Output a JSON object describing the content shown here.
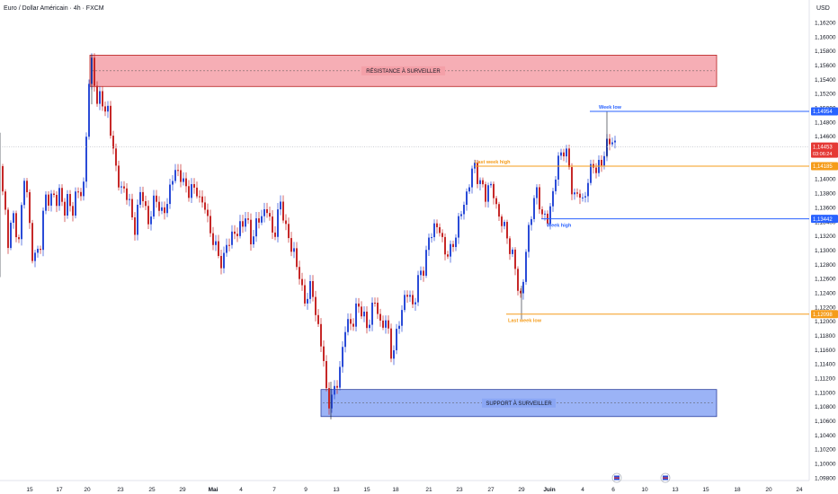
{
  "header": {
    "title": "Euro / Dollar Américain · 4h · FXCM",
    "currency": "USD"
  },
  "chart_data": {
    "type": "candlestick",
    "y_range": [
      1.098,
      1.164
    ],
    "y_ticks": [
      "1,16200",
      "1,16000",
      "1,15800",
      "1,15600",
      "1,15400",
      "1,15200",
      "1,15000",
      "1,14800",
      "1,14600",
      "1,14400",
      "1,14200",
      "1,14000",
      "1,13800",
      "1,13600",
      "1,13400",
      "1,13200",
      "1,13000",
      "1,12800",
      "1,12600",
      "1,12400",
      "1,12200",
      "1,12000",
      "1,11800",
      "1,11600",
      "1,11400",
      "1,11200",
      "1,11000",
      "1,10800",
      "1,10600",
      "1,10400",
      "1,10200",
      "1,10000",
      "1,09800"
    ],
    "y_tick_values": [
      1.162,
      1.16,
      1.158,
      1.156,
      1.154,
      1.152,
      1.15,
      1.148,
      1.146,
      1.144,
      1.142,
      1.14,
      1.138,
      1.136,
      1.134,
      1.132,
      1.13,
      1.128,
      1.126,
      1.124,
      1.122,
      1.12,
      1.118,
      1.116,
      1.114,
      1.112,
      1.11,
      1.108,
      1.106,
      1.104,
      1.102,
      1.1,
      1.098
    ],
    "x_ticks": [
      {
        "label": "15",
        "bold": false
      },
      {
        "label": "17",
        "bold": false
      },
      {
        "label": "20",
        "bold": false
      },
      {
        "label": "23",
        "bold": false
      },
      {
        "label": "25",
        "bold": false
      },
      {
        "label": "29",
        "bold": false
      },
      {
        "label": "Mai",
        "bold": true
      },
      {
        "label": "4",
        "bold": false
      },
      {
        "label": "7",
        "bold": false
      },
      {
        "label": "9",
        "bold": false
      },
      {
        "label": "13",
        "bold": false
      },
      {
        "label": "15",
        "bold": false
      },
      {
        "label": "18",
        "bold": false
      },
      {
        "label": "21",
        "bold": false
      },
      {
        "label": "23",
        "bold": false
      },
      {
        "label": "27",
        "bold": false
      },
      {
        "label": "29",
        "bold": false
      },
      {
        "label": "Juin",
        "bold": true
      },
      {
        "label": "4",
        "bold": false
      },
      {
        "label": "6",
        "bold": false
      },
      {
        "label": "10",
        "bold": false
      },
      {
        "label": "13",
        "bold": false
      },
      {
        "label": "15",
        "bold": false
      },
      {
        "label": "18",
        "bold": false
      },
      {
        "label": "20",
        "bold": false
      },
      {
        "label": "24",
        "bold": false
      }
    ],
    "zones": [
      {
        "label": "RÉSISTANCE À SURVEILLER",
        "top": 1.1574,
        "bottom": 1.153,
        "fill": "#f4a0a8",
        "stroke": "#b71c1c"
      },
      {
        "label": "SUPPORT À SURVEILLER",
        "top": 1.1104,
        "bottom": 1.1066,
        "fill": "#8aa6f4",
        "stroke": "#2a3f9e"
      }
    ],
    "levels": [
      {
        "label": "Week low",
        "value": 1.1495,
        "price_label": "1,14954",
        "color": "#2962ff"
      },
      {
        "label": "Last week high",
        "value": 1.1418,
        "price_label": "1,14185",
        "color": "#f59c1a"
      },
      {
        "label": "Week high",
        "value": 1.1344,
        "price_label": "1,13442",
        "color": "#2962ff"
      },
      {
        "label": "Last week low",
        "value": 1.121,
        "price_label": "1,12098",
        "color": "#f59c1a"
      }
    ],
    "current_price": {
      "value": 1.1445,
      "label": "1,14453",
      "countdown": "03:06:24",
      "color": "#e53935"
    },
    "up_color": "#2a4bd7",
    "down_color": "#c62828",
    "anchors": [
      [
        0,
        1.1418
      ],
      [
        5,
        1.1362
      ],
      [
        9,
        1.131
      ],
      [
        13,
        1.1355
      ],
      [
        17,
        1.1322
      ],
      [
        22,
        1.1325
      ],
      [
        27,
        1.1398
      ],
      [
        31,
        1.138
      ],
      [
        35,
        1.129
      ],
      [
        40,
        1.1292
      ],
      [
        44,
        1.13
      ],
      [
        49,
        1.1365
      ],
      [
        53,
        1.137
      ],
      [
        58,
        1.1383
      ],
      [
        62,
        1.136
      ],
      [
        67,
        1.139
      ],
      [
        71,
        1.135
      ],
      [
        76,
        1.1372
      ],
      [
        80,
        1.1356
      ],
      [
        85,
        1.1376
      ],
      [
        89,
        1.1382
      ],
      [
        93,
        1.1392
      ],
      [
        96,
        1.146
      ],
      [
        98,
        1.152
      ],
      [
        100,
        1.1548
      ],
      [
        102,
        1.1565
      ],
      [
        104,
        1.1548
      ],
      [
        106,
        1.1532
      ],
      [
        108,
        1.1505
      ],
      [
        110,
        1.1525
      ],
      [
        112,
        1.1498
      ],
      [
        114,
        1.1512
      ],
      [
        116,
        1.1488
      ],
      [
        118,
        1.151
      ],
      [
        120,
        1.1492
      ],
      [
        122,
        1.147
      ],
      [
        125,
        1.1455
      ],
      [
        128,
        1.1425
      ],
      [
        131,
        1.1398
      ],
      [
        134,
        1.1382
      ],
      [
        137,
        1.1385
      ],
      [
        140,
        1.1388
      ],
      [
        143,
        1.137
      ],
      [
        146,
        1.1348
      ],
      [
        149,
        1.1325
      ],
      [
        153,
        1.136
      ],
      [
        157,
        1.1382
      ],
      [
        161,
        1.1365
      ],
      [
        165,
        1.134
      ],
      [
        169,
        1.1352
      ],
      [
        173,
        1.138
      ],
      [
        177,
        1.1362
      ],
      [
        181,
        1.1342
      ],
      [
        185,
        1.1368
      ],
      [
        190,
        1.139
      ],
      [
        195,
        1.1412
      ],
      [
        200,
        1.1408
      ],
      [
        204,
        1.1395
      ],
      [
        208,
        1.1378
      ],
      [
        212,
        1.1395
      ],
      [
        216,
        1.1378
      ],
      [
        220,
        1.1385
      ],
      [
        224,
        1.1366
      ],
      [
        228,
        1.136
      ],
      [
        232,
        1.1335
      ],
      [
        236,
        1.132
      ],
      [
        240,
        1.13
      ],
      [
        244,
        1.129
      ],
      [
        248,
        1.1282
      ],
      [
        252,
        1.1305
      ],
      [
        256,
        1.1315
      ],
      [
        260,
        1.133
      ],
      [
        264,
        1.1318
      ],
      [
        268,
        1.1338
      ],
      [
        272,
        1.135
      ],
      [
        276,
        1.133
      ],
      [
        280,
        1.1312
      ],
      [
        284,
        1.1335
      ],
      [
        288,
        1.1342
      ],
      [
        292,
        1.1348
      ],
      [
        296,
        1.1366
      ],
      [
        300,
        1.1338
      ],
      [
        304,
        1.1318
      ],
      [
        308,
        1.1345
      ],
      [
        312,
        1.1362
      ],
      [
        316,
        1.1348
      ],
      [
        320,
        1.132
      ],
      [
        324,
        1.13
      ],
      [
        328,
        1.1296
      ],
      [
        332,
        1.127
      ],
      [
        336,
        1.1238
      ],
      [
        340,
        1.123
      ],
      [
        344,
        1.1248
      ],
      [
        348,
        1.1236
      ],
      [
        352,
        1.1206
      ],
      [
        356,
        1.1178
      ],
      [
        360,
        1.114
      ],
      [
        364,
        1.109
      ],
      [
        368,
        1.1088
      ],
      [
        372,
        1.11
      ],
      [
        376,
        1.1125
      ],
      [
        380,
        1.1145
      ],
      [
        384,
        1.119
      ],
      [
        388,
        1.1205
      ],
      [
        392,
        1.119
      ],
      [
        396,
        1.1215
      ],
      [
        400,
        1.1228
      ],
      [
        404,
        1.1205
      ],
      [
        408,
        1.119
      ],
      [
        412,
        1.121
      ],
      [
        416,
        1.123
      ],
      [
        420,
        1.1212
      ],
      [
        424,
        1.1192
      ],
      [
        428,
        1.1205
      ],
      [
        432,
        1.118
      ],
      [
        436,
        1.1152
      ],
      [
        440,
        1.117
      ],
      [
        444,
        1.12
      ],
      [
        448,
        1.1225
      ],
      [
        452,
        1.124
      ],
      [
        456,
        1.1232
      ],
      [
        460,
        1.1222
      ],
      [
        464,
        1.125
      ],
      [
        468,
        1.1268
      ],
      [
        472,
        1.128
      ],
      [
        476,
        1.1308
      ],
      [
        480,
        1.1325
      ],
      [
        484,
        1.1338
      ],
      [
        488,
        1.133
      ],
      [
        492,
        1.131
      ],
      [
        496,
        1.13
      ],
      [
        500,
        1.129
      ],
      [
        504,
        1.131
      ],
      [
        508,
        1.133
      ],
      [
        512,
        1.1348
      ],
      [
        516,
        1.1365
      ],
      [
        520,
        1.1385
      ],
      [
        524,
        1.1405
      ],
      [
        528,
        1.1418
      ],
      [
        532,
        1.1402
      ],
      [
        536,
        1.1385
      ],
      [
        540,
        1.1378
      ],
      [
        544,
        1.1395
      ],
      [
        548,
        1.1382
      ],
      [
        552,
        1.136
      ],
      [
        556,
        1.1348
      ],
      [
        560,
        1.133
      ],
      [
        564,
        1.132
      ],
      [
        568,
        1.13
      ],
      [
        572,
        1.128
      ],
      [
        576,
        1.125
      ],
      [
        580,
        1.123
      ],
      [
        584,
        1.1285
      ],
      [
        588,
        1.133
      ],
      [
        592,
        1.1362
      ],
      [
        596,
        1.138
      ],
      [
        600,
        1.1368
      ],
      [
        604,
        1.1348
      ],
      [
        608,
        1.1335
      ],
      [
        612,
        1.1362
      ],
      [
        616,
        1.1388
      ],
      [
        620,
        1.142
      ],
      [
        624,
        1.1438
      ],
      [
        628,
        1.1445
      ],
      [
        632,
        1.142
      ],
      [
        636,
        1.139
      ],
      [
        640,
        1.1372
      ],
      [
        644,
        1.138
      ],
      [
        648,
        1.137
      ],
      [
        652,
        1.1385
      ],
      [
        656,
        1.1405
      ],
      [
        660,
        1.1425
      ],
      [
        664,
        1.141
      ],
      [
        668,
        1.1418
      ],
      [
        672,
        1.1438
      ],
      [
        676,
        1.1455
      ],
      [
        680,
        1.1448
      ],
      [
        684,
        1.1452
      ]
    ]
  },
  "bottom_icons": [
    {
      "name": "economic-event-flag-icon-1",
      "date_index": 19
    },
    {
      "name": "economic-event-flag-icon-2",
      "date_index": 21
    }
  ]
}
